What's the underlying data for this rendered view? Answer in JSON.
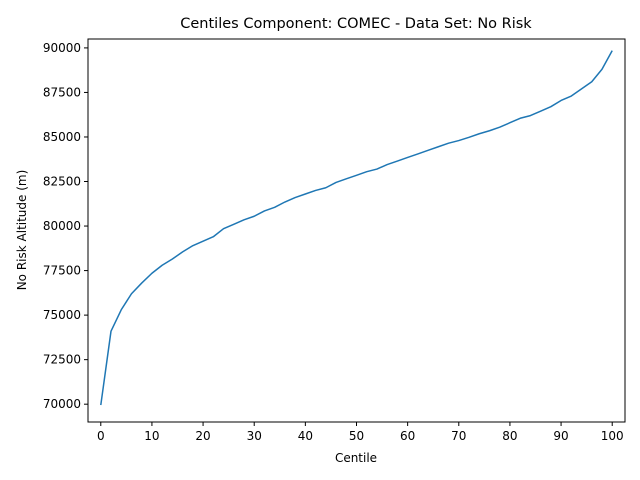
{
  "chart_data": {
    "type": "line",
    "title": "Centiles Component: COMEC - Data Set: No Risk",
    "xlabel": "Centile",
    "ylabel": "No Risk Altitude (m)",
    "xlim": [
      -2.5,
      102.5
    ],
    "ylim": [
      69000,
      90500
    ],
    "grid": false,
    "line_color": "#1f77b4",
    "x_ticks": [
      0,
      10,
      20,
      30,
      40,
      50,
      60,
      70,
      80,
      90,
      100
    ],
    "y_ticks": [
      70000,
      72500,
      75000,
      77500,
      80000,
      82500,
      85000,
      87500,
      90000
    ],
    "x_tick_labels": [
      "0",
      "10",
      "20",
      "30",
      "40",
      "50",
      "60",
      "70",
      "80",
      "90",
      "100"
    ],
    "y_tick_labels": [
      "70000",
      "72500",
      "75000",
      "77500",
      "80000",
      "82500",
      "85000",
      "87500",
      "90000"
    ],
    "series": [
      {
        "x": [
          0,
          2,
          4,
          6,
          8,
          10,
          12,
          14,
          16,
          18,
          20,
          22,
          24,
          26,
          28,
          30,
          32,
          34,
          36,
          38,
          40,
          42,
          44,
          46,
          48,
          50,
          52,
          54,
          56,
          58,
          60,
          62,
          64,
          66,
          68,
          70,
          72,
          74,
          76,
          78,
          80,
          82,
          84,
          86,
          88,
          90,
          92,
          94,
          96,
          98,
          100
        ],
        "y": [
          69950,
          74100,
          75300,
          76200,
          76800,
          77350,
          77800,
          78150,
          78550,
          78900,
          79150,
          79400,
          79850,
          80100,
          80350,
          80550,
          80850,
          81050,
          81350,
          81600,
          81800,
          82000,
          82150,
          82450,
          82650,
          82850,
          83050,
          83200,
          83450,
          83650,
          83850,
          84050,
          84250,
          84450,
          84650,
          84800,
          84980,
          85180,
          85350,
          85550,
          85800,
          86050,
          86200,
          86450,
          86700,
          87050,
          87300,
          87700,
          88100,
          88800,
          89850
        ]
      }
    ]
  }
}
